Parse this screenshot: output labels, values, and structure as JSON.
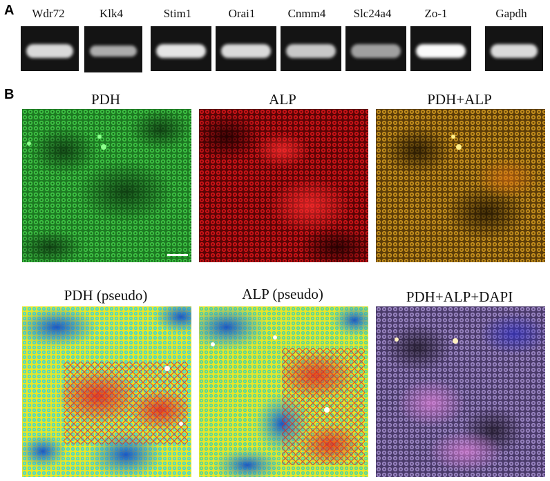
{
  "panel_a": {
    "letter": "A",
    "lanes": [
      {
        "label": "Wdr72",
        "band_intensity": 0.85
      },
      {
        "label": "Klk4",
        "band_intensity": 0.55
      },
      {
        "label": "Stim1",
        "band_intensity": 0.9
      },
      {
        "label": "Orai1",
        "band_intensity": 0.85
      },
      {
        "label": "Cnmm4",
        "band_intensity": 0.75
      },
      {
        "label": "Slc24a4",
        "band_intensity": 0.55
      },
      {
        "label": "Zo-1",
        "band_intensity": 1.0
      },
      {
        "label": "Gapdh",
        "band_intensity": 0.85
      }
    ]
  },
  "panel_b": {
    "letter": "B",
    "images": [
      {
        "title": "PDH",
        "style": "green"
      },
      {
        "title": "ALP",
        "style": "red"
      },
      {
        "title": "PDH+ALP",
        "style": "merge"
      },
      {
        "title": "PDH (pseudo)",
        "style": "pseudo1"
      },
      {
        "title": "ALP (pseudo)",
        "style": "pseudo2"
      },
      {
        "title": "PDH+ALP+DAPI",
        "style": "dapi"
      }
    ],
    "colors": {
      "green": "#35c33a",
      "red": "#e2141a",
      "merge": "#c58a1e",
      "dapi": "#8a70b8",
      "pseudo_blue": "#1f6fd6",
      "pseudo_cyan": "#39d3e6",
      "pseudo_yellow": "#f2e62b",
      "pseudo_red": "#e31c1c"
    }
  }
}
